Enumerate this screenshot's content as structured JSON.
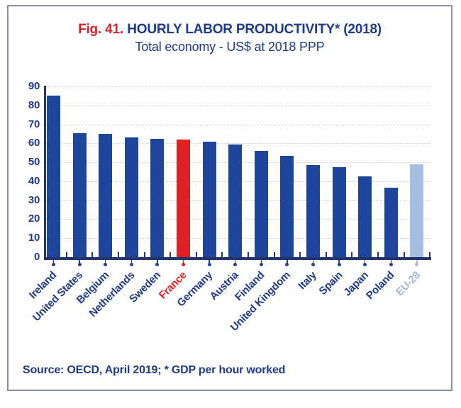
{
  "figure": {
    "fig_label": "Fig. 41.",
    "title": "HOURLY LABOR PRODUCTIVITY* (2018)",
    "subtitle": "Total economy - US$ at 2018 PPP",
    "source": "Source: OECD, April 2019; * GDP per hour worked"
  },
  "colors": {
    "navy_text": "#1e3a8a",
    "axis_navy": "#22356f",
    "fig_red": "#d8222b",
    "bar_blue": "#1e459c",
    "bar_red": "#e01f26",
    "bar_light_blue": "#a6bde2",
    "eu_label": "#a3b8d8",
    "gridline": "#c9ccd4",
    "frame_border": "#8b90a5"
  },
  "chart_data": {
    "type": "bar",
    "title": "Fig. 41. HOURLY LABOR PRODUCTIVITY* (2018)",
    "subtitle": "Total economy - US$ at 2018 PPP",
    "xlabel": "",
    "ylabel": "",
    "ylim": [
      0,
      90
    ],
    "ytick_interval": 10,
    "yticks": [
      0,
      10,
      20,
      30,
      40,
      50,
      60,
      70,
      80,
      90
    ],
    "grid": "horizontal-dotted",
    "legend": "none",
    "categories": [
      "Ireland",
      "United States",
      "Belgium",
      "Netherlands",
      "Sweden",
      "France",
      "Germany",
      "Austria",
      "Finland",
      "United Kingdom",
      "Italy",
      "Spain",
      "Japan",
      "Poland",
      "EU-28"
    ],
    "values": [
      85,
      65.5,
      65,
      63,
      62.5,
      62,
      61,
      59.5,
      56,
      53.5,
      48.5,
      47.5,
      42.5,
      36.5,
      49
    ],
    "bar_colors": [
      "#1e459c",
      "#1e459c",
      "#1e459c",
      "#1e459c",
      "#1e459c",
      "#e01f26",
      "#1e459c",
      "#1e459c",
      "#1e459c",
      "#1e459c",
      "#1e459c",
      "#1e459c",
      "#1e459c",
      "#1e459c",
      "#a6bde2"
    ],
    "label_colors": [
      "#1e3a8a",
      "#1e3a8a",
      "#1e3a8a",
      "#1e3a8a",
      "#1e3a8a",
      "#e01f26",
      "#1e3a8a",
      "#1e3a8a",
      "#1e3a8a",
      "#1e3a8a",
      "#1e3a8a",
      "#1e3a8a",
      "#1e3a8a",
      "#1e3a8a",
      "#a3b8d8"
    ],
    "highlighted_category": "France",
    "aggregate_category": "EU-28",
    "source_note": "Source: OECD, April 2019; * GDP per hour worked"
  }
}
